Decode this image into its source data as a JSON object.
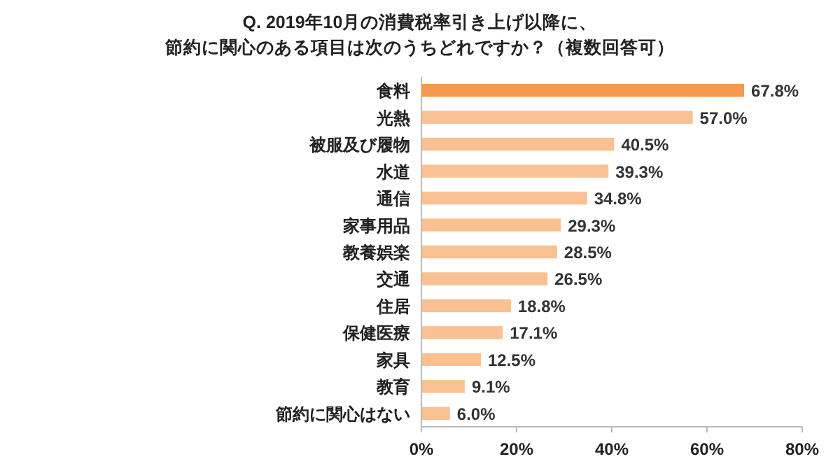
{
  "chart_data": {
    "type": "bar",
    "orientation": "horizontal",
    "title": "Q. 2019年10月の消費税率引き上げ以降に、",
    "subtitle": "節約に関心のある項目は次のうちどれですか？（複数回答可）",
    "categories": [
      "食料",
      "光熱",
      "被服及び履物",
      "水道",
      "通信",
      "家事用品",
      "教養娯楽",
      "交通",
      "住居",
      "保健医療",
      "家具",
      "教育",
      "節約に関心はない"
    ],
    "values": [
      67.8,
      57.0,
      40.5,
      39.3,
      34.8,
      29.3,
      28.5,
      26.5,
      18.8,
      17.1,
      12.5,
      9.1,
      6.0
    ],
    "value_labels": [
      "67.8%",
      "57.0%",
      "40.5%",
      "39.3%",
      "34.8%",
      "29.3%",
      "28.5%",
      "26.5%",
      "18.8%",
      "17.1%",
      "12.5%",
      "9.1%",
      "6.0%"
    ],
    "colors": [
      "#f59a4c",
      "#f9c192",
      "#f9c192",
      "#f9c192",
      "#f9c192",
      "#f9c192",
      "#f9c192",
      "#f9c192",
      "#f9c192",
      "#f9c192",
      "#f9c192",
      "#f9c192",
      "#f9c192"
    ],
    "xlim": [
      0,
      80
    ],
    "xticks": [
      {
        "value": 0,
        "label": "0%"
      },
      {
        "value": 20,
        "label": "20%"
      },
      {
        "value": 40,
        "label": "40%"
      },
      {
        "value": 60,
        "label": "60%"
      },
      {
        "value": 80,
        "label": "80%"
      }
    ],
    "grid": false
  }
}
